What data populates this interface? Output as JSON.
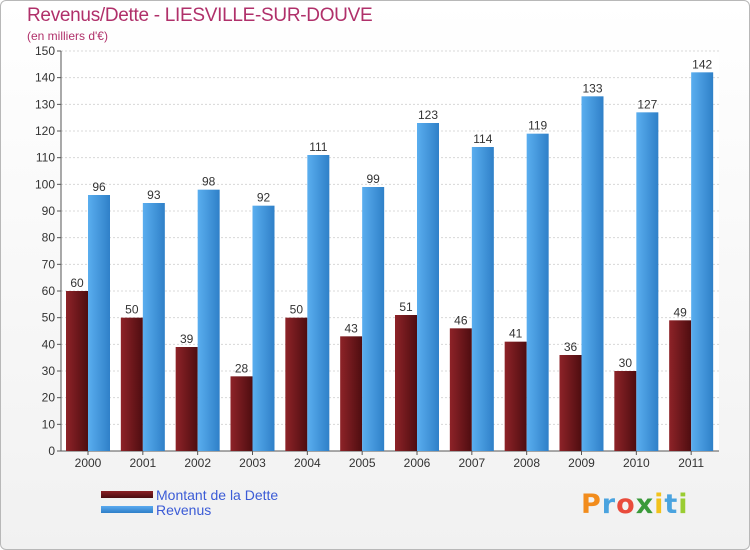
{
  "title": "Revenus/Dette - LIESVILLE-SUR-DOUVE",
  "subtitle": "(en milliers d'€)",
  "chart_data": {
    "type": "bar",
    "title": "Revenus/Dette - LIESVILLE-SUR-DOUVE",
    "ylabel": "(en milliers d'€)",
    "xlabel": "",
    "categories": [
      "2000",
      "2001",
      "2002",
      "2003",
      "2004",
      "2005",
      "2006",
      "2007",
      "2008",
      "2009",
      "2010",
      "2011"
    ],
    "series": [
      {
        "name": "Montant de la Dette",
        "values": [
          60,
          50,
          39,
          28,
          50,
          43,
          51,
          46,
          41,
          36,
          30,
          49
        ],
        "color": "#7a1a1e"
      },
      {
        "name": "Revenus",
        "values": [
          96,
          93,
          98,
          92,
          111,
          99,
          123,
          114,
          119,
          133,
          127,
          142
        ],
        "color": "#4a9de2"
      }
    ],
    "ylim": [
      0,
      150
    ],
    "yticks": [
      0,
      10,
      20,
      30,
      40,
      50,
      60,
      70,
      80,
      90,
      100,
      110,
      120,
      130,
      140,
      150
    ],
    "grid": true,
    "legend": "bottom-left"
  },
  "legend": {
    "debt_label": "Montant de la Dette",
    "revenue_label": "Revenus"
  },
  "logo": {
    "letters": [
      "P",
      "r",
      "o",
      "x",
      "i",
      "t",
      "i"
    ],
    "colors": [
      "#f28c1c",
      "#4aa3df",
      "#e94b3c",
      "#3a9a3a",
      "#f2c21b",
      "#4aa3df",
      "#9acd32"
    ]
  }
}
